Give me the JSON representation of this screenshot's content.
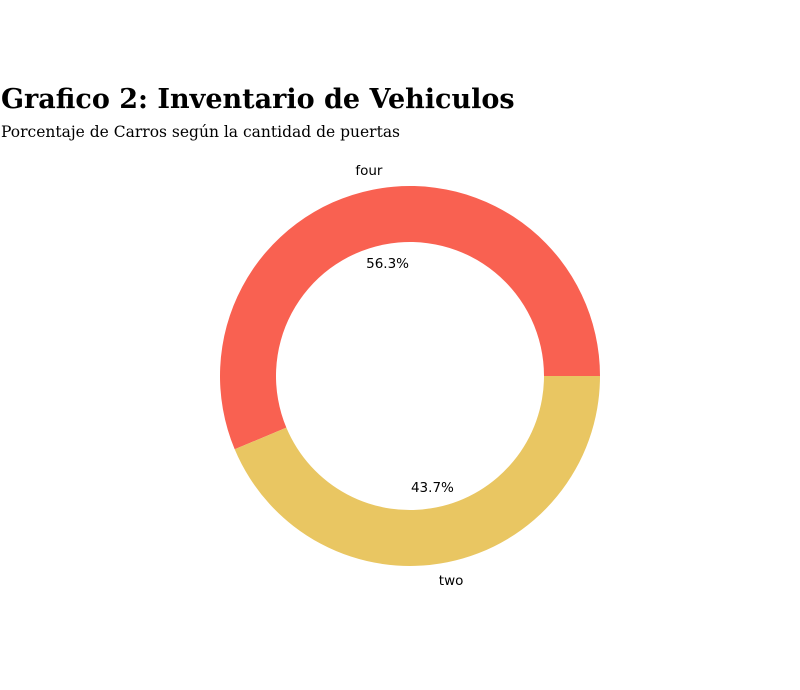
{
  "chart_data": {
    "type": "pie",
    "title": "Grafico 2: Inventario de Vehiculos",
    "subtitle": "Porcentaje de Carros según la cantidad de puertas",
    "categories": [
      "four",
      "two"
    ],
    "values": [
      56.3,
      43.7
    ],
    "percent_labels": [
      "56.3%",
      "43.7%"
    ],
    "colors": [
      "#f96151",
      "#e9c662"
    ],
    "donut": true,
    "start_angle_deg": 0,
    "direction": "counterclockwise"
  }
}
